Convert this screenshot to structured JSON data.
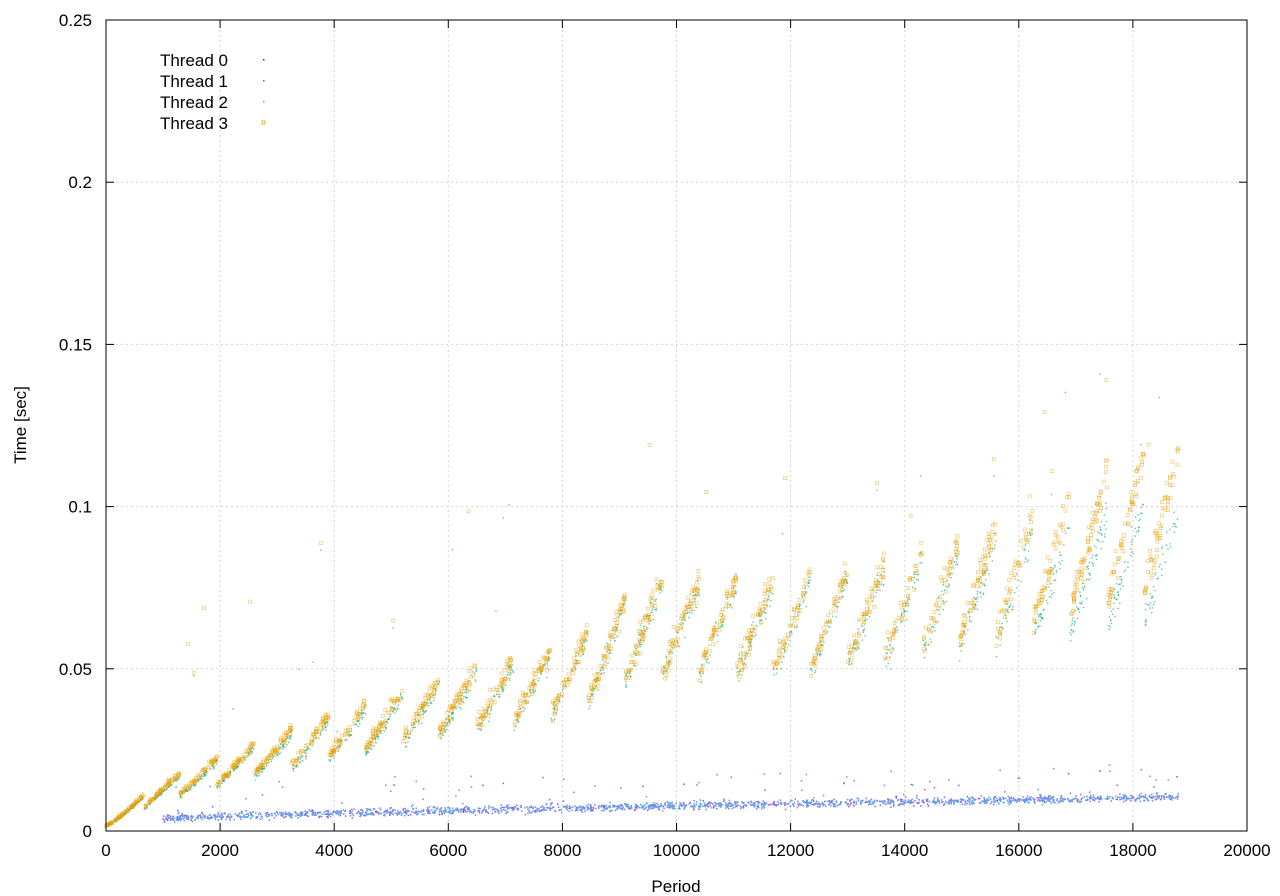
{
  "chart_data": {
    "type": "scatter",
    "title": "",
    "xlabel": "Period",
    "ylabel": "Time [sec]",
    "xlim": [
      0,
      20000
    ],
    "ylim": [
      0,
      0.25
    ],
    "xticks": [
      0,
      2000,
      4000,
      6000,
      8000,
      10000,
      12000,
      14000,
      16000,
      18000,
      20000
    ],
    "yticks": [
      0,
      0.05,
      0.1,
      0.15,
      0.2,
      0.25
    ],
    "xtick_labels": [
      "0",
      "2000",
      "4000",
      "6000",
      "8000",
      "10000",
      "12000",
      "14000",
      "16000",
      "18000",
      "20000"
    ],
    "ytick_labels": [
      "0",
      "0.05",
      "0.1",
      "0.15",
      "0.2",
      "0.25"
    ],
    "grid": true,
    "legend_position": "top-left",
    "series": [
      {
        "name": "Thread 0",
        "color": "#9400d3",
        "marker": "dot",
        "trend": [
          {
            "x": 1000,
            "y": 0.004
          },
          {
            "x": 4000,
            "y": 0.0055
          },
          {
            "x": 8000,
            "y": 0.007
          },
          {
            "x": 12000,
            "y": 0.0085
          },
          {
            "x": 16000,
            "y": 0.0095
          },
          {
            "x": 18800,
            "y": 0.0105
          }
        ]
      },
      {
        "name": "Thread 1",
        "color": "#009e73",
        "marker": "dot",
        "trend": [
          {
            "x": 0,
            "y": 0.002
          },
          {
            "x": 1000,
            "y": 0.012
          },
          {
            "x": 2000,
            "y": 0.018
          },
          {
            "x": 4000,
            "y": 0.028
          },
          {
            "x": 6000,
            "y": 0.038
          },
          {
            "x": 8000,
            "y": 0.045
          },
          {
            "x": 9500,
            "y": 0.062
          },
          {
            "x": 12000,
            "y": 0.062
          },
          {
            "x": 14000,
            "y": 0.067
          },
          {
            "x": 16000,
            "y": 0.075
          },
          {
            "x": 18800,
            "y": 0.085
          }
        ]
      },
      {
        "name": "Thread 2",
        "color": "#56b4e9",
        "marker": "dot",
        "trend": [
          {
            "x": 1000,
            "y": 0.004
          },
          {
            "x": 4000,
            "y": 0.0055
          },
          {
            "x": 8000,
            "y": 0.007
          },
          {
            "x": 12000,
            "y": 0.0085
          },
          {
            "x": 16000,
            "y": 0.0095
          },
          {
            "x": 18800,
            "y": 0.0105
          }
        ]
      },
      {
        "name": "Thread 3",
        "color": "#e69f00",
        "marker": "open-square",
        "trend": [
          {
            "x": 0,
            "y": 0.002
          },
          {
            "x": 1000,
            "y": 0.013
          },
          {
            "x": 2000,
            "y": 0.019
          },
          {
            "x": 4000,
            "y": 0.03
          },
          {
            "x": 6000,
            "y": 0.04
          },
          {
            "x": 8000,
            "y": 0.047
          },
          {
            "x": 9500,
            "y": 0.063
          },
          {
            "x": 12000,
            "y": 0.064
          },
          {
            "x": 14000,
            "y": 0.069
          },
          {
            "x": 16000,
            "y": 0.08
          },
          {
            "x": 18800,
            "y": 0.1
          }
        ]
      }
    ]
  }
}
